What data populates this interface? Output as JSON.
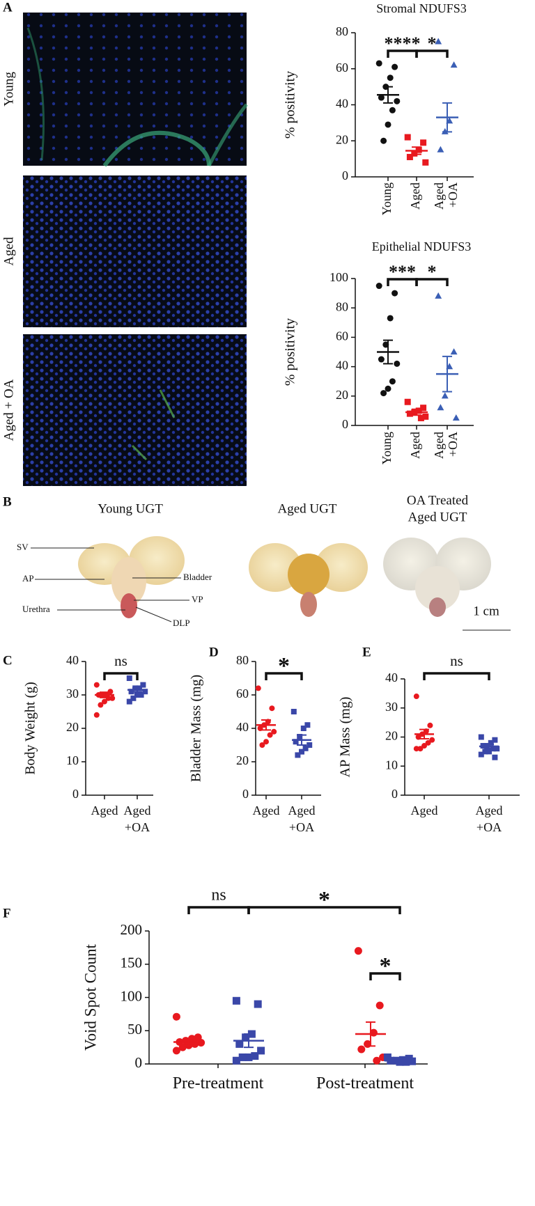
{
  "panel_labels": [
    "A",
    "B",
    "C",
    "D",
    "E",
    "F"
  ],
  "micrographs": {
    "labels": [
      "Young",
      "Aged",
      "Aged + OA"
    ]
  },
  "photos": {
    "titles": [
      [
        "Young UGT"
      ],
      [
        "Aged UGT"
      ],
      [
        "OA Treated",
        "Aged UGT"
      ]
    ],
    "annotations": [
      "SV",
      "AP",
      "Bladder",
      "Urethra",
      "VP",
      "DLP"
    ],
    "scale_bar": "1 cm"
  },
  "chart_data": [
    {
      "type": "dot-plot",
      "title": "Stromal NDUFS3",
      "y_label": "% positivity",
      "categories": [
        "Young",
        "Aged",
        "Aged +OA"
      ],
      "ylim": [
        0,
        80
      ],
      "yticks": [
        0,
        20,
        40,
        60,
        80
      ],
      "groups": [
        {
          "category": 0,
          "color": "#111111",
          "marker": "circle",
          "points": [
            63,
            61,
            55,
            50,
            44,
            42,
            37,
            29,
            20
          ],
          "mean": 45.5,
          "sem": 4.5
        },
        {
          "category": 1,
          "color": "#e8191f",
          "marker": "square",
          "points": [
            22,
            19,
            15,
            13,
            11,
            8
          ],
          "mean": 14.5,
          "sem": 2
        },
        {
          "category": 2,
          "color": "#3b5fb5",
          "marker": "triangle",
          "points": [
            75,
            62,
            31,
            25,
            15
          ],
          "mean": 33,
          "sem": 8
        }
      ],
      "brackets": [
        {
          "text": "****",
          "from": 0,
          "to": 1
        },
        {
          "text": "*",
          "from": 1,
          "to": 2
        }
      ]
    },
    {
      "type": "dot-plot",
      "title": "Epithelial NDUFS3",
      "y_label": "% positivity",
      "categories": [
        "Young",
        "Aged",
        "Aged +OA"
      ],
      "ylim": [
        0,
        100
      ],
      "yticks": [
        0,
        20,
        40,
        60,
        80,
        100
      ],
      "groups": [
        {
          "category": 0,
          "color": "#111111",
          "marker": "circle",
          "points": [
            95,
            90,
            73,
            55,
            45,
            42,
            30,
            25,
            22
          ],
          "mean": 50,
          "sem": 8
        },
        {
          "category": 1,
          "color": "#e8191f",
          "marker": "square",
          "points": [
            16,
            12,
            10,
            9,
            8,
            6,
            5
          ],
          "mean": 9,
          "sem": 2
        },
        {
          "category": 2,
          "color": "#3b5fb5",
          "marker": "triangle",
          "points": [
            88,
            50,
            40,
            20,
            12,
            5
          ],
          "mean": 35,
          "sem": 12
        }
      ],
      "brackets": [
        {
          "text": "***",
          "from": 0,
          "to": 1
        },
        {
          "text": "*",
          "from": 1,
          "to": 2
        }
      ]
    },
    {
      "type": "dot-plot",
      "y_label": "Body Weight (g)",
      "categories": [
        "Aged",
        "Aged +OA"
      ],
      "ylim": [
        0,
        40
      ],
      "yticks": [
        0,
        10,
        20,
        30,
        40
      ],
      "groups": [
        {
          "category": 0,
          "color": "#e8191f",
          "marker": "circle",
          "points": [
            33,
            31,
            30,
            30,
            30,
            29,
            29,
            28,
            27,
            24
          ],
          "mean": 30,
          "sem": 0.8
        },
        {
          "category": 1,
          "color": "#3a47a8",
          "marker": "square",
          "points": [
            35,
            33,
            32,
            32,
            31,
            31,
            30,
            30,
            29,
            28
          ],
          "mean": 31.5,
          "sem": 0.6
        }
      ],
      "brackets": [
        {
          "text": "ns",
          "from": 0,
          "to": 1
        }
      ]
    },
    {
      "type": "dot-plot",
      "y_label": "Bladder Mass (mg)",
      "categories": [
        "Aged",
        "Aged +OA"
      ],
      "ylim": [
        0,
        80
      ],
      "yticks": [
        0,
        20,
        40,
        60,
        80
      ],
      "groups": [
        {
          "category": 0,
          "color": "#e8191f",
          "marker": "circle",
          "points": [
            64,
            52,
            44,
            42,
            40,
            38,
            36,
            32,
            30
          ],
          "mean": 42,
          "sem": 3
        },
        {
          "category": 1,
          "color": "#3a47a8",
          "marker": "square",
          "points": [
            50,
            42,
            40,
            35,
            32,
            30,
            28,
            26,
            24
          ],
          "mean": 33,
          "sem": 3
        }
      ],
      "brackets": [
        {
          "text": "*",
          "from": 0,
          "to": 1
        }
      ]
    },
    {
      "type": "dot-plot",
      "y_label": "AP Mass (mg)",
      "categories": [
        "Aged",
        "Aged +OA"
      ],
      "ylim": [
        0,
        40
      ],
      "yticks": [
        0,
        10,
        20,
        30,
        40
      ],
      "groups": [
        {
          "category": 0,
          "color": "#e8191f",
          "marker": "circle",
          "points": [
            34,
            24,
            22,
            21,
            20,
            19,
            18,
            17,
            16,
            16
          ],
          "mean": 21,
          "sem": 1.6
        },
        {
          "category": 1,
          "color": "#3a47a8",
          "marker": "square",
          "points": [
            20,
            19,
            18,
            17,
            17,
            16,
            16,
            15,
            15,
            14,
            13
          ],
          "mean": 16.8,
          "sem": 0.7
        }
      ],
      "brackets": [
        {
          "text": "ns",
          "from": 0,
          "to": 1
        }
      ]
    },
    {
      "type": "dot-plot",
      "y_label": "Void Spot Count",
      "categories": [
        "Pre-treatment",
        "Post-treatment"
      ],
      "ylim": [
        0,
        200
      ],
      "yticks": [
        0,
        50,
        100,
        150,
        200
      ],
      "groups": [
        {
          "category": 0,
          "color": "#e8191f",
          "marker": "circle",
          "points": [
            71,
            40,
            38,
            35,
            33,
            32,
            30,
            28,
            25,
            20
          ],
          "mean": 33,
          "sem": 5
        },
        {
          "category": 0,
          "color": "#3a47a8",
          "marker": "square",
          "points": [
            95,
            90,
            45,
            40,
            30,
            20,
            12,
            10,
            10,
            5
          ],
          "mean": 35,
          "sem": 10
        },
        {
          "category": 1,
          "color": "#e8191f",
          "marker": "circle",
          "points": [
            170,
            88,
            47,
            30,
            22,
            10,
            5
          ],
          "mean": 45,
          "sem": 18
        },
        {
          "category": 1,
          "color": "#3a47a8",
          "marker": "square",
          "points": [
            10,
            8,
            6,
            5,
            5,
            4,
            3,
            3
          ],
          "mean": 5,
          "sem": 1
        }
      ],
      "brackets": [
        {
          "text": "ns",
          "from": 0,
          "to": 1
        },
        {
          "text": "*",
          "from": 2,
          "to": 3
        },
        {
          "text": "*",
          "from": 1,
          "to": 3
        }
      ]
    }
  ]
}
